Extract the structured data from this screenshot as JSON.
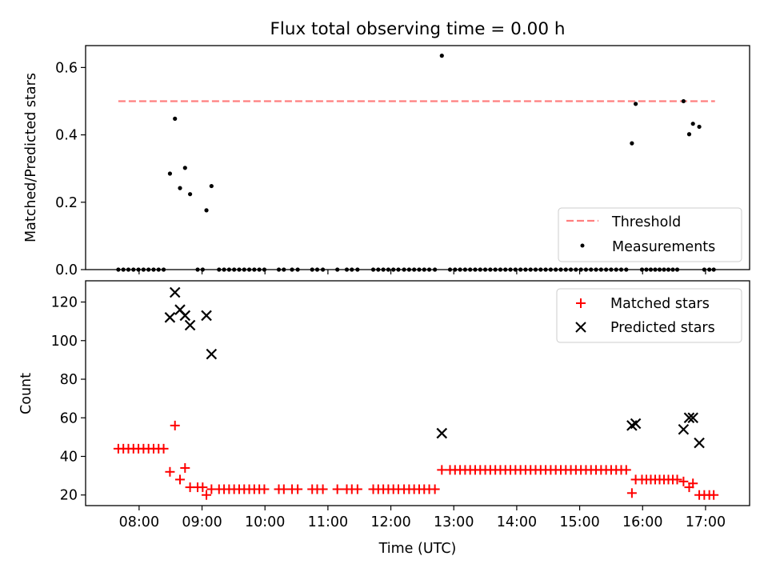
{
  "chart_data": [
    {
      "type": "scatter",
      "title": "Flux total observing time = 0.00 h",
      "xlabel": "",
      "ylabel": "Matched/Predicted stars",
      "x_tick_labels": [
        "08:00",
        "09:00",
        "10:00",
        "11:00",
        "12:00",
        "13:00",
        "14:00",
        "15:00",
        "16:00",
        "17:00"
      ],
      "x_ticks_hours": [
        8,
        9,
        10,
        11,
        12,
        13,
        14,
        15,
        16,
        17
      ],
      "xlim_hours": [
        7.15,
        17.7
      ],
      "ylim": [
        0,
        0.665
      ],
      "y_ticks": [
        0.0,
        0.2,
        0.4,
        0.6
      ],
      "y_tick_labels": [
        "0.0",
        "0.2",
        "0.4",
        "0.6"
      ],
      "threshold": {
        "name": "Threshold",
        "value": 0.5,
        "x_range_hours": [
          7.67,
          17.15
        ],
        "color": "#ff7f7f"
      },
      "legend": {
        "placement": "lower-right",
        "entries": [
          "Threshold",
          "Measurements"
        ]
      },
      "series": [
        {
          "name": "Measurements",
          "color": "#000000",
          "marker": "dot",
          "x_hours": [
            7.67,
            7.75,
            7.83,
            7.91,
            7.99,
            8.07,
            8.15,
            8.23,
            8.31,
            8.39,
            8.49,
            8.57,
            8.65,
            8.73,
            8.81,
            8.93,
            9.01,
            9.07,
            9.15,
            9.27,
            9.35,
            9.43,
            9.51,
            9.59,
            9.67,
            9.75,
            9.83,
            9.91,
            9.99,
            10.22,
            10.3,
            10.43,
            10.52,
            10.75,
            10.83,
            10.92,
            11.15,
            11.3,
            11.38,
            11.47,
            11.72,
            11.8,
            11.88,
            11.96,
            12.04,
            12.12,
            12.21,
            12.29,
            12.37,
            12.45,
            12.53,
            12.61,
            12.7,
            12.81,
            12.94,
            13.02,
            13.1,
            13.18,
            13.26,
            13.34,
            13.42,
            13.5,
            13.58,
            13.66,
            13.74,
            13.82,
            13.9,
            13.98,
            14.06,
            14.14,
            14.22,
            14.3,
            14.38,
            14.46,
            14.54,
            14.62,
            14.7,
            14.78,
            14.86,
            14.94,
            15.02,
            15.1,
            15.18,
            15.26,
            15.34,
            15.42,
            15.5,
            15.58,
            15.66,
            15.74,
            15.83,
            15.89,
            15.99,
            16.06,
            16.13,
            16.2,
            16.27,
            16.34,
            16.41,
            16.48,
            16.55,
            16.65,
            16.74,
            16.8,
            16.9,
            16.98,
            17.06,
            17.13
          ],
          "y": [
            0,
            0,
            0,
            0,
            0,
            0,
            0,
            0,
            0,
            0,
            0.285,
            0.448,
            0.242,
            0.302,
            0.224,
            0,
            0,
            0.176,
            0.248,
            0,
            0,
            0,
            0,
            0,
            0,
            0,
            0,
            0,
            0,
            0,
            0,
            0,
            0,
            0,
            0,
            0,
            0,
            0,
            0,
            0,
            0,
            0,
            0,
            0,
            0,
            0,
            0,
            0,
            0,
            0,
            0,
            0,
            0,
            0.635,
            0,
            0,
            0,
            0,
            0,
            0,
            0,
            0,
            0,
            0,
            0,
            0,
            0,
            0,
            0,
            0,
            0,
            0,
            0,
            0,
            0,
            0,
            0,
            0,
            0,
            0,
            0,
            0,
            0,
            0,
            0,
            0,
            0,
            0,
            0,
            0,
            0.375,
            0.492,
            0,
            0,
            0,
            0,
            0,
            0,
            0,
            0,
            0,
            0.5,
            0.402,
            0.433,
            0.424,
            0,
            0,
            0
          ]
        }
      ]
    },
    {
      "type": "scatter",
      "title": "",
      "xlabel": "Time (UTC)",
      "ylabel": "Count",
      "x_tick_labels": [
        "08:00",
        "09:00",
        "10:00",
        "11:00",
        "12:00",
        "13:00",
        "14:00",
        "15:00",
        "16:00",
        "17:00"
      ],
      "x_ticks_hours": [
        8,
        9,
        10,
        11,
        12,
        13,
        14,
        15,
        16,
        17
      ],
      "xlim_hours": [
        7.15,
        17.7
      ],
      "ylim": [
        14.5,
        131
      ],
      "y_ticks": [
        20,
        40,
        60,
        80,
        100,
        120
      ],
      "y_tick_labels": [
        "20",
        "40",
        "60",
        "80",
        "100",
        "120"
      ],
      "legend": {
        "placement": "top-right",
        "entries": [
          "Matched stars",
          "Predicted stars"
        ]
      },
      "series": [
        {
          "name": "Matched stars",
          "color": "#ff0000",
          "marker": "plus",
          "x_hours": [
            7.67,
            7.75,
            7.83,
            7.91,
            7.99,
            8.07,
            8.15,
            8.23,
            8.31,
            8.39,
            8.49,
            8.57,
            8.65,
            8.73,
            8.81,
            8.93,
            9.01,
            9.07,
            9.15,
            9.27,
            9.35,
            9.43,
            9.51,
            9.59,
            9.67,
            9.75,
            9.83,
            9.91,
            9.99,
            10.22,
            10.3,
            10.43,
            10.52,
            10.75,
            10.83,
            10.92,
            11.15,
            11.3,
            11.38,
            11.47,
            11.72,
            11.8,
            11.88,
            11.96,
            12.04,
            12.12,
            12.21,
            12.29,
            12.37,
            12.45,
            12.53,
            12.61,
            12.7,
            12.81,
            12.94,
            13.02,
            13.1,
            13.18,
            13.26,
            13.34,
            13.42,
            13.5,
            13.58,
            13.66,
            13.74,
            13.82,
            13.9,
            13.98,
            14.06,
            14.14,
            14.22,
            14.3,
            14.38,
            14.46,
            14.54,
            14.62,
            14.7,
            14.78,
            14.86,
            14.94,
            15.02,
            15.1,
            15.18,
            15.26,
            15.34,
            15.42,
            15.5,
            15.58,
            15.66,
            15.74,
            15.83,
            15.89,
            15.99,
            16.06,
            16.13,
            16.2,
            16.27,
            16.34,
            16.41,
            16.48,
            16.55,
            16.65,
            16.74,
            16.8,
            16.9,
            16.98,
            17.06,
            17.13
          ],
          "y": [
            44,
            44,
            44,
            44,
            44,
            44,
            44,
            44,
            44,
            44,
            32,
            56,
            28,
            34,
            24,
            24,
            24,
            20,
            23,
            23,
            23,
            23,
            23,
            23,
            23,
            23,
            23,
            23,
            23,
            23,
            23,
            23,
            23,
            23,
            23,
            23,
            23,
            23,
            23,
            23,
            23,
            23,
            23,
            23,
            23,
            23,
            23,
            23,
            23,
            23,
            23,
            23,
            23,
            33,
            33,
            33,
            33,
            33,
            33,
            33,
            33,
            33,
            33,
            33,
            33,
            33,
            33,
            33,
            33,
            33,
            33,
            33,
            33,
            33,
            33,
            33,
            33,
            33,
            33,
            33,
            33,
            33,
            33,
            33,
            33,
            33,
            33,
            33,
            33,
            33,
            21,
            28,
            28,
            28,
            28,
            28,
            28,
            28,
            28,
            28,
            28,
            27,
            24,
            26,
            20,
            20,
            20,
            20
          ]
        },
        {
          "name": "Predicted stars",
          "color": "#000000",
          "marker": "x",
          "x_hours": [
            8.49,
            8.57,
            8.65,
            8.73,
            8.81,
            9.07,
            9.15,
            12.81,
            15.83,
            15.89,
            16.65,
            16.74,
            16.8,
            16.9
          ],
          "y": [
            112,
            125,
            116,
            113,
            108,
            113,
            93,
            52,
            56,
            57,
            54,
            60,
            60,
            47
          ]
        }
      ]
    }
  ]
}
